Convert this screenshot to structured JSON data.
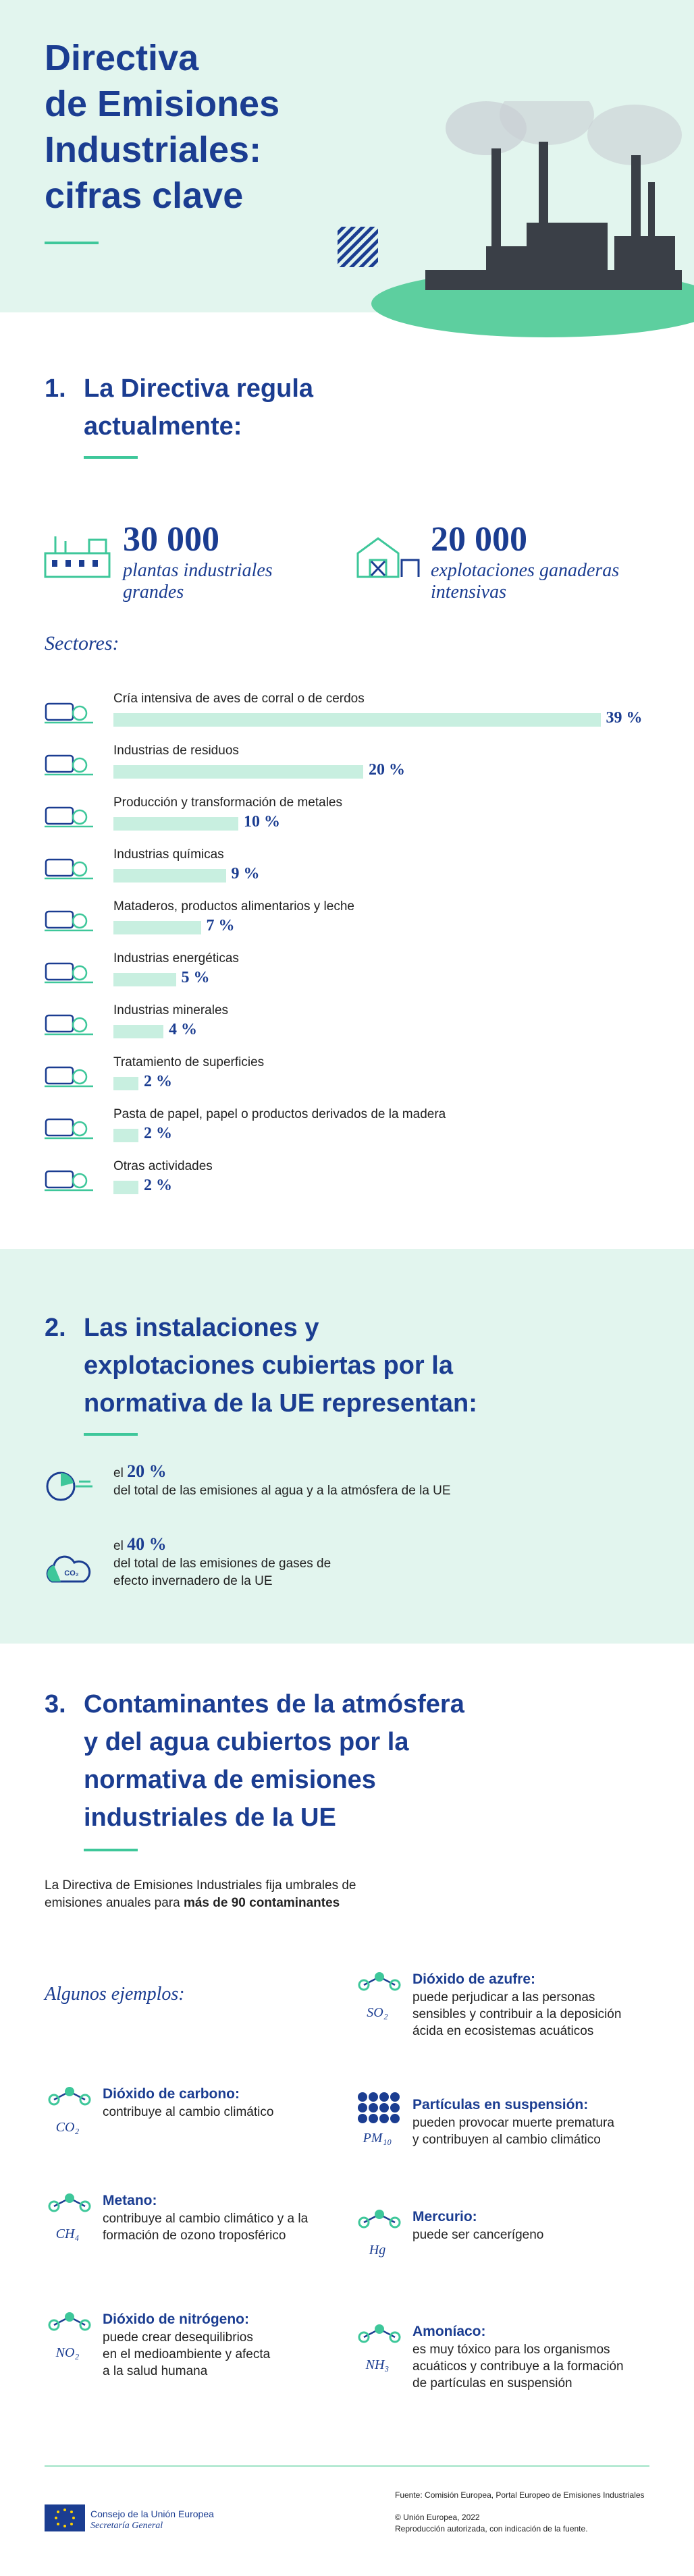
{
  "header": {
    "title_lines": [
      "Directiva",
      "de Emisiones",
      "Industriales:",
      "cifras clave"
    ]
  },
  "section1": {
    "number": "1.",
    "heading_lines": [
      "La Directiva regula",
      "actualmente:"
    ],
    "stats": [
      {
        "figure": "30 000",
        "caption_lines": [
          "plantas industriales",
          "grandes"
        ]
      },
      {
        "figure": "20 000",
        "caption_lines": [
          "explotaciones ganaderas",
          "intensivas"
        ]
      }
    ],
    "sectors_title": "Sectores:",
    "sectors": [
      {
        "label": "Cría intensiva de aves de corral o de cerdos",
        "value": 39,
        "value_label": "39 %"
      },
      {
        "label": "Industrias de residuos",
        "value": 20,
        "value_label": "20 %"
      },
      {
        "label": "Producción y transformación de metales",
        "value": 10,
        "value_label": "10 %"
      },
      {
        "label": "Industrias químicas",
        "value": 9,
        "value_label": "9 %"
      },
      {
        "label": "Mataderos, productos alimentarios y leche",
        "value": 7,
        "value_label": "7 %"
      },
      {
        "label": "Industrias energéticas",
        "value": 5,
        "value_label": "5 %"
      },
      {
        "label": "Industrias minerales",
        "value": 4,
        "value_label": "4 %"
      },
      {
        "label": "Tratamiento de superficies",
        "value": 2,
        "value_label": "2 %"
      },
      {
        "label": "Pasta de papel, papel o productos derivados de la madera",
        "value": 2,
        "value_label": "2 %"
      },
      {
        "label": "Otras actividades",
        "value": 2,
        "value_label": "2 %"
      }
    ]
  },
  "section2": {
    "number": "2.",
    "heading_lines": [
      "Las instalaciones y",
      "explotaciones cubiertas por la",
      "normativa de la UE representan:"
    ],
    "items": [
      {
        "prefix": "el",
        "figure": "20 %",
        "text_lines": [
          "del total de las emisiones al agua y a la atmósfera de la UE"
        ]
      },
      {
        "prefix": "el",
        "figure": "40 %",
        "text_lines": [
          "del total de las emisiones de gases de",
          "efecto invernadero de la UE"
        ],
        "icon_text": "CO₂"
      }
    ]
  },
  "section3": {
    "number": "3.",
    "heading_lines": [
      "Contaminantes de la atmósfera",
      "y del agua cubiertos por la",
      "normativa de emisiones",
      "industriales de la UE"
    ],
    "intro_lines": [
      "La Directiva de Emisiones Industriales fija umbrales de",
      "emisiones anuales para"
    ],
    "intro_bold": "más de 90 contaminantes",
    "examples_title": "Algunos ejemplos:",
    "pollutants": [
      {
        "formula": "SO₂",
        "name": "Dióxido de azufre:",
        "desc_lines": [
          "puede perjudicar a las personas",
          "sensibles y contribuir a la deposición",
          "ácida en ecosistemas acuáticos"
        ]
      },
      {
        "formula": "CO₂",
        "name": "Dióxido de carbono:",
        "desc_lines": [
          "contribuye al cambio climático"
        ]
      },
      {
        "formula": "PM₁₀",
        "name": "Partículas en suspensión:",
        "desc_lines": [
          "pueden provocar muerte prematura",
          "y contribuyen al cambio climático"
        ]
      },
      {
        "formula": "CH₄",
        "name": "Metano:",
        "desc_lines": [
          "contribuye al cambio climático y a la",
          "formación de ozono troposférico"
        ]
      },
      {
        "formula": "Hg",
        "name": "Mercurio:",
        "desc_lines": [
          "puede ser cancerígeno"
        ]
      },
      {
        "formula": "NO₂",
        "name": "Dióxido de nitrógeno:",
        "desc_lines": [
          "puede crear desequilibrios",
          "en el medioambiente y afecta",
          "a la salud humana"
        ]
      },
      {
        "formula": "NH₃",
        "name": "Amoníaco:",
        "desc_lines": [
          "es muy tóxico para los organismos",
          "acuáticos y contribuye a la formación",
          "de partículas en suspensión"
        ]
      }
    ]
  },
  "footer": {
    "org": "Consejo de la Unión Europea",
    "org_sub": "Secretaría General",
    "source": "Fuente: Comisión Europea, Portal Europeo de Emisiones Industriales",
    "copyright": "© Unión Europea, 2022",
    "reproduction": "Reproducción autorizada, con indicación de la fuente."
  }
}
